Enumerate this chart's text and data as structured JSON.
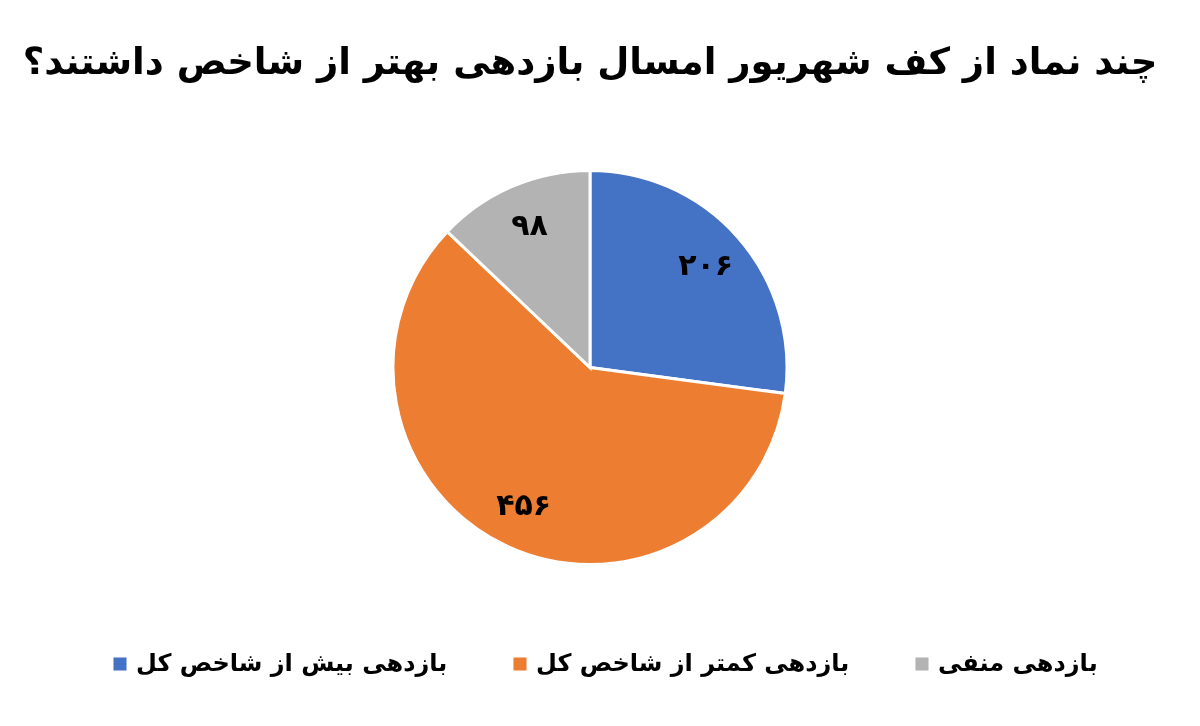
{
  "chart_data": {
    "type": "pie",
    "title": "چند نماد از کف شهریور امسال بازدهی بهتر از شاخص داشتند؟",
    "categories": [
      "بازدهی بیش از شاخص کل",
      "بازدهی کمتر از شاخص کل",
      "بازدهی منفی"
    ],
    "values": [
      206,
      456,
      98
    ],
    "colors": [
      "#4472c4",
      "#ed7d31",
      "#b3b3b3"
    ],
    "value_labels": [
      "۲۰۶",
      "۴۵۶",
      "۹۸"
    ],
    "legend": "bottom"
  }
}
